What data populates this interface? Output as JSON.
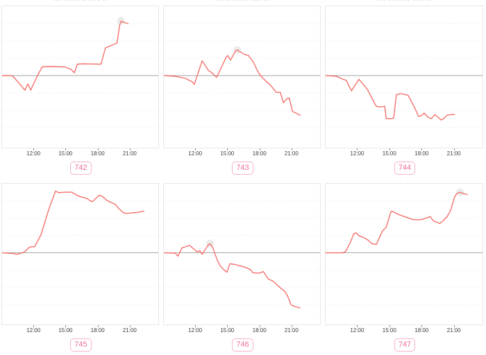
{
  "colors": {
    "line": "#f4706b",
    "baseline": "#a6a6a6",
    "gridline": "#eaeaea",
    "panel_border": "#e7e7e7",
    "badge_border": "#f6b3c8",
    "badge_text": "#ee6e96",
    "axis_label": "#3d3d3d",
    "tick": "#8c8c8c",
    "title_marks": "#b8b8b8",
    "max_halo": "#e8e8e8"
  },
  "decor": {
    "row1_title_marks": "··· ········ ···· ··",
    "row2_title_marks": "· ·"
  },
  "chart_meta": {
    "layout": "3 columns x 2 rows of small-multiple line charts",
    "series_convention": "points are [x,y]; x = fraction of plot width (0..1); y = fraction of panel half-height above(+)/below(-) the gray zero baseline; y-axis has no visible labels",
    "gridlines": "faint dotted horizontal lines at ±0.25, ±0.5, ±0.75; solid gray line at baseline 0",
    "x_axis_span": "ticks every 3 hours; 12:00 at 20.35% .. 21:00 at 81.4% of plot width"
  },
  "chart_data": [
    {
      "type": "line",
      "badge": "742",
      "x_tick_labels": [
        "12:00",
        "15:00",
        "18:00",
        "21:00"
      ],
      "baseline": 0,
      "max_marker": [
        0.762,
        0.79
      ],
      "points": [
        [
          0,
          0
        ],
        [
          0.05,
          0
        ],
        [
          0.07,
          -0.01
        ],
        [
          0.146,
          -0.21
        ],
        [
          0.165,
          -0.12
        ],
        [
          0.183,
          -0.21
        ],
        [
          0.227,
          0
        ],
        [
          0.257,
          0.125
        ],
        [
          0.3,
          0.13
        ],
        [
          0.4,
          0.125
        ],
        [
          0.441,
          0.09
        ],
        [
          0.463,
          0.04
        ],
        [
          0.482,
          0.165
        ],
        [
          0.52,
          0.17
        ],
        [
          0.633,
          0.165
        ],
        [
          0.662,
          0.4
        ],
        [
          0.684,
          0.42
        ],
        [
          0.736,
          0.47
        ],
        [
          0.752,
          0.72
        ],
        [
          0.762,
          0.785
        ],
        [
          0.775,
          0.77
        ],
        [
          0.807,
          0.75
        ]
      ]
    },
    {
      "type": "line",
      "badge": "743",
      "x_tick_labels": [
        "12:00",
        "15:00",
        "18:00",
        "21:00"
      ],
      "baseline": 0,
      "max_marker": [
        0.47,
        0.37
      ],
      "points": [
        [
          0,
          0
        ],
        [
          0.07,
          -0.01
        ],
        [
          0.139,
          -0.04
        ],
        [
          0.183,
          -0.093
        ],
        [
          0.195,
          -0.127
        ],
        [
          0.245,
          0.213
        ],
        [
          0.286,
          0.073
        ],
        [
          0.308,
          0.04
        ],
        [
          0.338,
          -0.025
        ],
        [
          0.401,
          0.273
        ],
        [
          0.409,
          0.29
        ],
        [
          0.426,
          0.223
        ],
        [
          0.46,
          0.357
        ],
        [
          0.47,
          0.37
        ],
        [
          0.493,
          0.337
        ],
        [
          0.522,
          0.3
        ],
        [
          0.54,
          0.293
        ],
        [
          0.574,
          0.19
        ],
        [
          0.596,
          0.083
        ],
        [
          0.618,
          0
        ],
        [
          0.655,
          -0.083
        ],
        [
          0.684,
          -0.143
        ],
        [
          0.714,
          -0.227
        ],
        [
          0.721,
          -0.243
        ],
        [
          0.746,
          -0.243
        ],
        [
          0.765,
          -0.393
        ],
        [
          0.788,
          -0.333
        ],
        [
          0.802,
          -0.323
        ],
        [
          0.824,
          -0.517
        ],
        [
          0.847,
          -0.543
        ],
        [
          0.873,
          -0.573
        ]
      ]
    },
    {
      "type": "line",
      "badge": "744",
      "x_tick_labels": [
        "12:00",
        "15:00",
        "18:00",
        "21:00"
      ],
      "baseline": 0,
      "max_marker": null,
      "points": [
        [
          0,
          0
        ],
        [
          0.04,
          -0.005
        ],
        [
          0.065,
          -0.01
        ],
        [
          0.087,
          -0.027
        ],
        [
          0.109,
          -0.053
        ],
        [
          0.131,
          -0.067
        ],
        [
          0.165,
          -0.22
        ],
        [
          0.212,
          -0.053
        ],
        [
          0.264,
          -0.193
        ],
        [
          0.323,
          -0.443
        ],
        [
          0.345,
          -0.453
        ],
        [
          0.377,
          -0.443
        ],
        [
          0.386,
          -0.62
        ],
        [
          0.422,
          -0.623
        ],
        [
          0.434,
          -0.61
        ],
        [
          0.451,
          -0.277
        ],
        [
          0.478,
          -0.26
        ],
        [
          0.525,
          -0.283
        ],
        [
          0.563,
          -0.443
        ],
        [
          0.593,
          -0.59
        ],
        [
          0.614,
          -0.573
        ],
        [
          0.628,
          -0.54
        ],
        [
          0.652,
          -0.6
        ],
        [
          0.673,
          -0.623
        ],
        [
          0.696,
          -0.563
        ],
        [
          0.717,
          -0.6
        ],
        [
          0.736,
          -0.64
        ],
        [
          0.755,
          -0.617
        ],
        [
          0.773,
          -0.573
        ],
        [
          0.8,
          -0.563
        ],
        [
          0.82,
          -0.56
        ]
      ]
    },
    {
      "type": "line",
      "badge": "745",
      "x_tick_labels": [
        "12:00",
        "15:00",
        "18:00",
        "21:00"
      ],
      "baseline": 0,
      "max_marker": null,
      "points": [
        [
          0,
          0
        ],
        [
          0.072,
          -0.01
        ],
        [
          0.091,
          -0.023
        ],
        [
          0.124,
          -0.007
        ],
        [
          0.146,
          0.017
        ],
        [
          0.176,
          0.083
        ],
        [
          0.209,
          0.09
        ],
        [
          0.249,
          0.26
        ],
        [
          0.301,
          0.643
        ],
        [
          0.342,
          0.893
        ],
        [
          0.363,
          0.87
        ],
        [
          0.397,
          0.877
        ],
        [
          0.448,
          0.877
        ],
        [
          0.481,
          0.83
        ],
        [
          0.507,
          0.81
        ],
        [
          0.54,
          0.79
        ],
        [
          0.569,
          0.747
        ],
        [
          0.578,
          0.74
        ],
        [
          0.622,
          0.833
        ],
        [
          0.643,
          0.817
        ],
        [
          0.67,
          0.76
        ],
        [
          0.696,
          0.73
        ],
        [
          0.724,
          0.703
        ],
        [
          0.746,
          0.643
        ],
        [
          0.776,
          0.58
        ],
        [
          0.8,
          0.57
        ],
        [
          0.829,
          0.577
        ],
        [
          0.861,
          0.583
        ],
        [
          0.908,
          0.603
        ]
      ]
    },
    {
      "type": "line",
      "badge": "746",
      "x_tick_labels": [
        "12:00",
        "15:00",
        "18:00",
        "21:00"
      ],
      "baseline": 0,
      "max_marker": [
        0.296,
        0.135
      ],
      "points": [
        [
          0,
          0
        ],
        [
          0.072,
          -0.005
        ],
        [
          0.091,
          -0.05
        ],
        [
          0.116,
          0.07
        ],
        [
          0.139,
          0.087
        ],
        [
          0.165,
          0.107
        ],
        [
          0.195,
          0.047
        ],
        [
          0.215,
          0.01
        ],
        [
          0.23,
          0.03
        ],
        [
          0.245,
          -0.023
        ],
        [
          0.286,
          0.117
        ],
        [
          0.296,
          0.13
        ],
        [
          0.313,
          0.077
        ],
        [
          0.327,
          -0.017
        ],
        [
          0.345,
          -0.123
        ],
        [
          0.363,
          -0.197
        ],
        [
          0.389,
          -0.257
        ],
        [
          0.404,
          -0.283
        ],
        [
          0.422,
          -0.16
        ],
        [
          0.448,
          -0.167
        ],
        [
          0.49,
          -0.19
        ],
        [
          0.522,
          -0.213
        ],
        [
          0.554,
          -0.243
        ],
        [
          0.569,
          -0.29
        ],
        [
          0.608,
          -0.297
        ],
        [
          0.637,
          -0.273
        ],
        [
          0.667,
          -0.377
        ],
        [
          0.702,
          -0.417
        ],
        [
          0.726,
          -0.467
        ],
        [
          0.751,
          -0.52
        ],
        [
          0.773,
          -0.557
        ],
        [
          0.791,
          -0.62
        ],
        [
          0.814,
          -0.753
        ],
        [
          0.835,
          -0.777
        ],
        [
          0.873,
          -0.8
        ]
      ]
    },
    {
      "type": "line",
      "badge": "747",
      "x_tick_labels": [
        "12:00",
        "15:00",
        "18:00",
        "21:00"
      ],
      "baseline": 0,
      "max_marker": [
        0.857,
        0.877
      ],
      "points": [
        [
          0,
          0
        ],
        [
          0.109,
          0
        ],
        [
          0.127,
          0.017
        ],
        [
          0.156,
          0.143
        ],
        [
          0.18,
          0.277
        ],
        [
          0.193,
          0.287
        ],
        [
          0.215,
          0.243
        ],
        [
          0.242,
          0.223
        ],
        [
          0.274,
          0.177
        ],
        [
          0.293,
          0.133
        ],
        [
          0.323,
          0.12
        ],
        [
          0.363,
          0.317
        ],
        [
          0.386,
          0.37
        ],
        [
          0.416,
          0.593
        ],
        [
          0.423,
          0.603
        ],
        [
          0.466,
          0.553
        ],
        [
          0.51,
          0.517
        ],
        [
          0.554,
          0.483
        ],
        [
          0.584,
          0.477
        ],
        [
          0.614,
          0.483
        ],
        [
          0.643,
          0.503
        ],
        [
          0.665,
          0.527
        ],
        [
          0.687,
          0.46
        ],
        [
          0.711,
          0.443
        ],
        [
          0.726,
          0.423
        ],
        [
          0.752,
          0.47
        ],
        [
          0.776,
          0.53
        ],
        [
          0.796,
          0.61
        ],
        [
          0.82,
          0.797
        ],
        [
          0.835,
          0.857
        ],
        [
          0.857,
          0.877
        ],
        [
          0.879,
          0.857
        ],
        [
          0.904,
          0.843
        ]
      ]
    }
  ]
}
